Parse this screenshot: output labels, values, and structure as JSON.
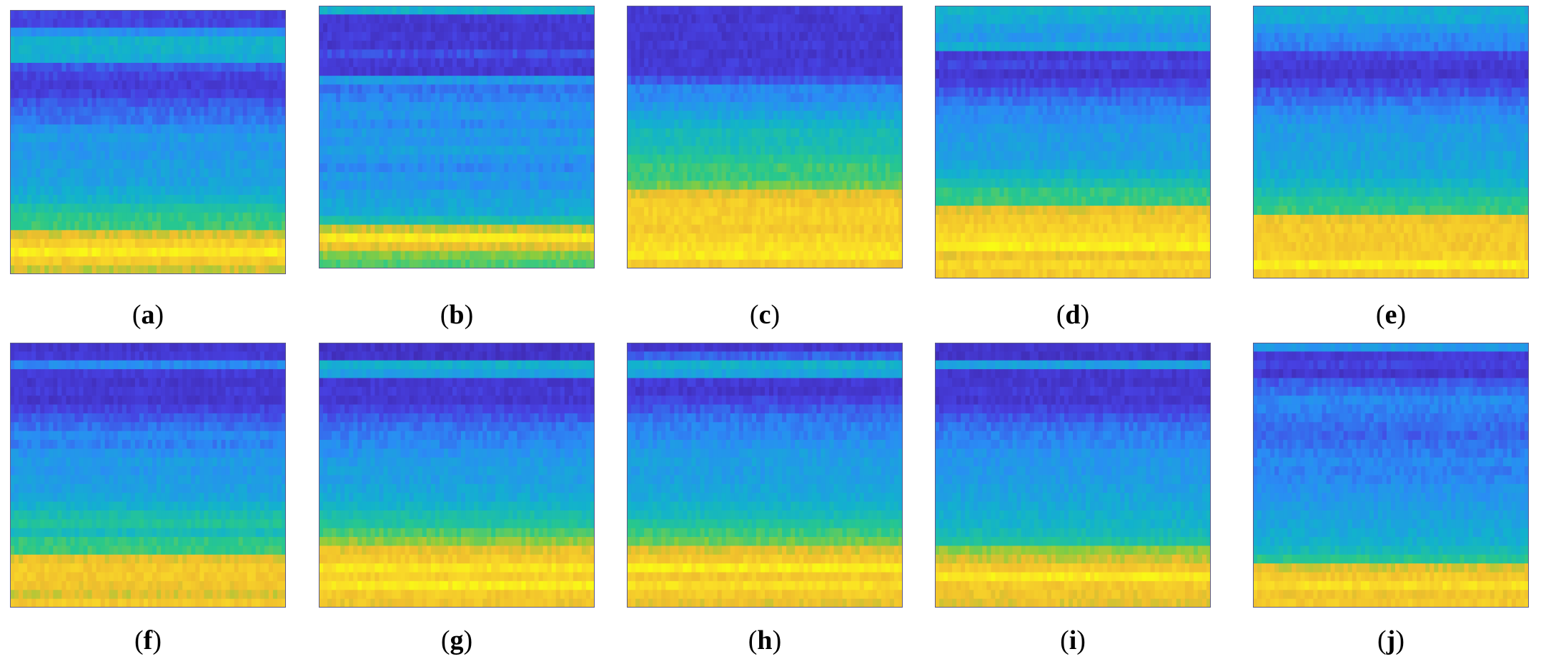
{
  "chart_data": {
    "type": "heatmap",
    "colormap": "parula",
    "panels": [
      {
        "label": "a",
        "bands": [
          0.15,
          0.15,
          0.32,
          0.45,
          0.45,
          0.42,
          0.2,
          0.15,
          0.12,
          0.14,
          0.2,
          0.24,
          0.26,
          0.32,
          0.36,
          0.34,
          0.35,
          0.37,
          0.38,
          0.39,
          0.42,
          0.46,
          0.54,
          0.6,
          0.62,
          0.8,
          0.88,
          0.96,
          0.86,
          0.78
        ]
      },
      {
        "label": "b",
        "bands": [
          0.45,
          0.12,
          0.1,
          0.12,
          0.1,
          0.18,
          0.12,
          0.1,
          0.35,
          0.25,
          0.28,
          0.33,
          0.34,
          0.3,
          0.36,
          0.33,
          0.38,
          0.34,
          0.3,
          0.36,
          0.33,
          0.38,
          0.4,
          0.42,
          0.52,
          0.78,
          0.95,
          0.82,
          0.7,
          0.65
        ]
      },
      {
        "label": "c",
        "bands": [
          0.12,
          0.1,
          0.12,
          0.1,
          0.12,
          0.1,
          0.12,
          0.12,
          0.2,
          0.3,
          0.3,
          0.35,
          0.4,
          0.45,
          0.5,
          0.5,
          0.52,
          0.58,
          0.62,
          0.62,
          0.68,
          0.82,
          0.86,
          0.88,
          0.88,
          0.86,
          0.9,
          0.92,
          0.95,
          0.86
        ]
      },
      {
        "label": "d",
        "bands": [
          0.45,
          0.42,
          0.38,
          0.35,
          0.42,
          0.12,
          0.15,
          0.1,
          0.15,
          0.2,
          0.25,
          0.3,
          0.32,
          0.35,
          0.36,
          0.37,
          0.38,
          0.4,
          0.45,
          0.52,
          0.6,
          0.62,
          0.82,
          0.86,
          0.88,
          0.92,
          0.96,
          0.84,
          0.9,
          0.86
        ]
      },
      {
        "label": "e",
        "bands": [
          0.42,
          0.42,
          0.35,
          0.3,
          0.28,
          0.15,
          0.12,
          0.1,
          0.15,
          0.2,
          0.25,
          0.3,
          0.33,
          0.36,
          0.37,
          0.38,
          0.39,
          0.4,
          0.42,
          0.46,
          0.52,
          0.58,
          0.62,
          0.84,
          0.86,
          0.86,
          0.86,
          0.88,
          0.96,
          0.86
        ]
      },
      {
        "label": "f",
        "bands": [
          0.1,
          0.12,
          0.3,
          0.12,
          0.1,
          0.12,
          0.1,
          0.15,
          0.2,
          0.25,
          0.3,
          0.28,
          0.33,
          0.36,
          0.34,
          0.37,
          0.38,
          0.4,
          0.45,
          0.52,
          0.56,
          0.5,
          0.6,
          0.62,
          0.82,
          0.86,
          0.86,
          0.84,
          0.8,
          0.86
        ]
      },
      {
        "label": "g",
        "bands": [
          0.08,
          0.08,
          0.45,
          0.38,
          0.1,
          0.12,
          0.1,
          0.15,
          0.2,
          0.25,
          0.28,
          0.3,
          0.33,
          0.36,
          0.38,
          0.37,
          0.4,
          0.42,
          0.46,
          0.52,
          0.56,
          0.64,
          0.72,
          0.82,
          0.86,
          0.94,
          0.88,
          0.96,
          0.86,
          0.84
        ]
      },
      {
        "label": "h",
        "bands": [
          0.1,
          0.22,
          0.45,
          0.4,
          0.12,
          0.1,
          0.15,
          0.2,
          0.25,
          0.28,
          0.3,
          0.33,
          0.36,
          0.38,
          0.37,
          0.38,
          0.4,
          0.42,
          0.46,
          0.5,
          0.56,
          0.62,
          0.68,
          0.8,
          0.86,
          0.96,
          0.86,
          0.92,
          0.86,
          0.82
        ]
      },
      {
        "label": "i",
        "bands": [
          0.1,
          0.08,
          0.38,
          0.1,
          0.1,
          0.12,
          0.1,
          0.15,
          0.2,
          0.25,
          0.28,
          0.3,
          0.33,
          0.34,
          0.35,
          0.36,
          0.38,
          0.4,
          0.42,
          0.44,
          0.46,
          0.5,
          0.55,
          0.72,
          0.78,
          0.86,
          0.96,
          0.86,
          0.84,
          0.82
        ]
      },
      {
        "label": "j",
        "bands": [
          0.35,
          0.12,
          0.15,
          0.1,
          0.2,
          0.25,
          0.3,
          0.28,
          0.26,
          0.24,
          0.22,
          0.25,
          0.27,
          0.3,
          0.28,
          0.3,
          0.33,
          0.34,
          0.36,
          0.38,
          0.4,
          0.42,
          0.44,
          0.5,
          0.58,
          0.8,
          0.86,
          0.92,
          0.84,
          0.86
        ]
      }
    ]
  },
  "captions": [
    "a",
    "b",
    "c",
    "d",
    "e",
    "f",
    "g",
    "h",
    "i",
    "j"
  ]
}
